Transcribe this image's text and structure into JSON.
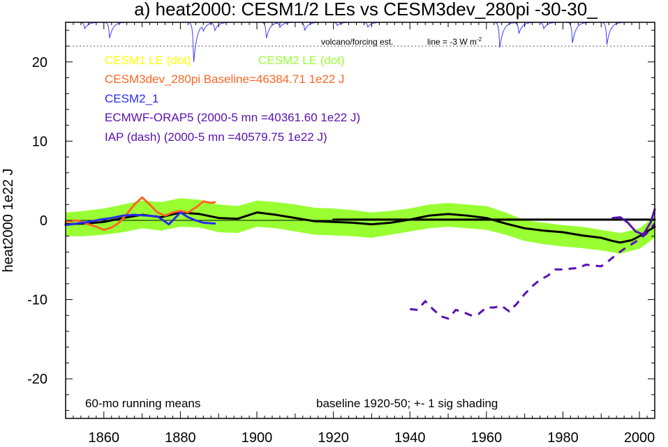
{
  "chart_data": {
    "type": "line",
    "title": "a) heat2000: CESM1/2 LEs vs CESM3dev_280pi -30-30_",
    "ylabel": "heat2000 1e22 J",
    "xlabel": "",
    "xlim": [
      1850,
      2004
    ],
    "ylim": [
      -25,
      25
    ],
    "x_ticks": [
      1860,
      1880,
      1900,
      1920,
      1940,
      1960,
      1980,
      2000
    ],
    "y_ticks": [
      -20,
      -10,
      0,
      10,
      20
    ],
    "x_tick_labels": [
      "1860",
      "1880",
      "1900",
      "1920",
      "1940",
      "1960",
      "1980",
      "2000"
    ],
    "y_tick_labels": [
      "-20",
      "-10",
      "0",
      "10",
      "20"
    ],
    "grid": false,
    "colors": {
      "cesm1": "#ffff00",
      "cesm2": "#99ff33",
      "cesm3": "#ff6622",
      "cesm2_1": "#2a2aee",
      "orap5": "#5a10b0",
      "iap": "#5a10b0",
      "ensemble_mean": "#000000",
      "volcano": "#3a3aff"
    },
    "legend": [
      {
        "key": "cesm1",
        "text": "CESM1 LE (dot)"
      },
      {
        "key": "cesm2",
        "text": "CESM2 LE (dot)"
      },
      {
        "key": "cesm3",
        "text": "CESM3dev_280pi Baseline=46384.71 1e22 J"
      },
      {
        "key": "cesm2_1",
        "text": "CESM2_1"
      },
      {
        "key": "orap5",
        "text": "ECMWF-ORAP5 (2000-5 mn =40361.60 1e22 J)"
      },
      {
        "key": "iap",
        "text": "IAP (dash) (2000-5 mn =40579.75 1e22 J)"
      }
    ],
    "annotations": {
      "volcano_label": "volcano/forcing est.",
      "line_label": "line = -3 W m",
      "line_label_sup": "-2",
      "bottom_left": "60-mo running means",
      "bottom_right": "baseline 1920-50; +- 1 sig shading"
    },
    "volcano_reference_y": 22,
    "volcano": {
      "baseline_y": 25,
      "events": [
        [
          1855,
          0.8
        ],
        [
          1861.5,
          2.0
        ],
        [
          1883.5,
          5.0
        ],
        [
          1886,
          0.8
        ],
        [
          1889,
          1.0
        ],
        [
          1902.5,
          2.0
        ],
        [
          1906,
          0.6
        ],
        [
          1912.5,
          1.0
        ],
        [
          1921,
          0.4
        ],
        [
          1929,
          0.6
        ],
        [
          1963.5,
          3.2
        ],
        [
          1968.5,
          1.4
        ],
        [
          1975,
          0.8
        ],
        [
          1982.5,
          2.6
        ],
        [
          1991.5,
          2.8
        ]
      ]
    },
    "shading": {
      "x": [
        1850,
        1855,
        1860,
        1865,
        1870,
        1875,
        1880,
        1885,
        1890,
        1895,
        1900,
        1905,
        1910,
        1915,
        1920,
        1925,
        1930,
        1935,
        1940,
        1945,
        1950,
        1955,
        1960,
        1965,
        1970,
        1975,
        1980,
        1985,
        1990,
        1995,
        2000,
        2004
      ],
      "upper": [
        1.0,
        1.2,
        1.5,
        2.0,
        2.5,
        2.3,
        2.8,
        2.6,
        2.0,
        1.8,
        2.5,
        2.3,
        2.0,
        1.6,
        1.5,
        1.3,
        1.0,
        1.2,
        1.5,
        2.0,
        2.2,
        2.0,
        1.8,
        1.0,
        0.0,
        -0.3,
        -0.6,
        -0.8,
        -1.2,
        -1.6,
        -1.0,
        0.5
      ],
      "lower": [
        -2.0,
        -2.0,
        -1.8,
        -1.5,
        -1.0,
        -1.3,
        -0.8,
        -0.9,
        -1.5,
        -1.6,
        -0.8,
        -1.0,
        -1.4,
        -1.8,
        -1.9,
        -2.0,
        -2.2,
        -1.8,
        -1.4,
        -1.0,
        -0.8,
        -1.0,
        -1.2,
        -1.8,
        -2.6,
        -3.0,
        -3.3,
        -3.5,
        -3.8,
        -4.2,
        -3.6,
        -2.2
      ]
    },
    "series": [
      {
        "key": "ensemble_mean",
        "dash": false,
        "x": [
          1850,
          1855,
          1860,
          1865,
          1870,
          1875,
          1880,
          1885,
          1890,
          1895,
          1900,
          1905,
          1910,
          1915,
          1920,
          1925,
          1930,
          1935,
          1940,
          1945,
          1950,
          1955,
          1960,
          1965,
          1970,
          1975,
          1980,
          1985,
          1990,
          1993,
          1995,
          1998,
          2000,
          2004
        ],
        "y": [
          -0.5,
          -0.4,
          -0.2,
          0.3,
          0.7,
          0.4,
          1.0,
          0.8,
          0.3,
          0.2,
          1.0,
          0.7,
          0.3,
          -0.1,
          -0.2,
          -0.3,
          -0.5,
          -0.3,
          0.1,
          0.6,
          0.8,
          0.6,
          0.3,
          -0.4,
          -1.0,
          -1.3,
          -1.5,
          -1.9,
          -2.2,
          -2.6,
          -2.8,
          -2.5,
          -2.0,
          -0.8
        ]
      },
      {
        "key": "ensemble_mean",
        "dash": false,
        "x": [
          1920,
          2004
        ],
        "y": [
          0.1,
          0.1
        ]
      },
      {
        "key": "cesm3",
        "dash": false,
        "x": [
          1850,
          1853,
          1856,
          1858,
          1860,
          1862,
          1864,
          1866,
          1868,
          1870,
          1872,
          1874,
          1876,
          1878,
          1880,
          1882,
          1884,
          1886,
          1888,
          1889
        ],
        "y": [
          -0.2,
          0.0,
          -0.5,
          -0.8,
          -1.2,
          -0.9,
          -0.3,
          0.8,
          2.0,
          2.9,
          2.0,
          1.0,
          0.6,
          1.0,
          1.2,
          1.0,
          1.6,
          2.4,
          2.2,
          2.3
        ]
      },
      {
        "key": "cesm2_1",
        "dash": false,
        "x": [
          1850,
          1853,
          1856,
          1859,
          1862,
          1865,
          1868,
          1871,
          1874,
          1877,
          1880,
          1882,
          1884,
          1886,
          1889
        ],
        "y": [
          -0.6,
          -0.4,
          -0.2,
          0.1,
          0.3,
          0.6,
          0.7,
          0.6,
          0.5,
          -0.5,
          1.0,
          0.4,
          0.0,
          -0.3,
          -0.4
        ]
      },
      {
        "key": "orap5",
        "dash": false,
        "x": [
          1993,
          1995,
          1997,
          1999,
          2001,
          2003,
          2004
        ],
        "y": [
          0.3,
          0.4,
          -0.3,
          -1.4,
          -1.8,
          -0.2,
          1.4
        ]
      },
      {
        "key": "iap",
        "dash": true,
        "x": [
          1940,
          1942,
          1944,
          1946,
          1948,
          1950,
          1952,
          1954,
          1956,
          1958,
          1960,
          1962,
          1964,
          1966,
          1968,
          1970,
          1972,
          1974,
          1976,
          1978,
          1980,
          1982,
          1984,
          1986,
          1988,
          1990,
          1992,
          1994,
          1996,
          1998,
          2000,
          2002,
          2004
        ],
        "y": [
          -11.2,
          -11.3,
          -10.2,
          -11.2,
          -12.1,
          -12.4,
          -11.3,
          -11.6,
          -12.0,
          -11.8,
          -11.0,
          -11.0,
          -10.8,
          -11.5,
          -10.5,
          -9.3,
          -8.3,
          -7.5,
          -7.0,
          -6.2,
          -6.2,
          -6.1,
          -6.0,
          -5.6,
          -5.7,
          -5.8,
          -5.1,
          -4.3,
          -3.6,
          -3.0,
          -2.4,
          -1.6,
          -0.4
        ]
      }
    ]
  }
}
